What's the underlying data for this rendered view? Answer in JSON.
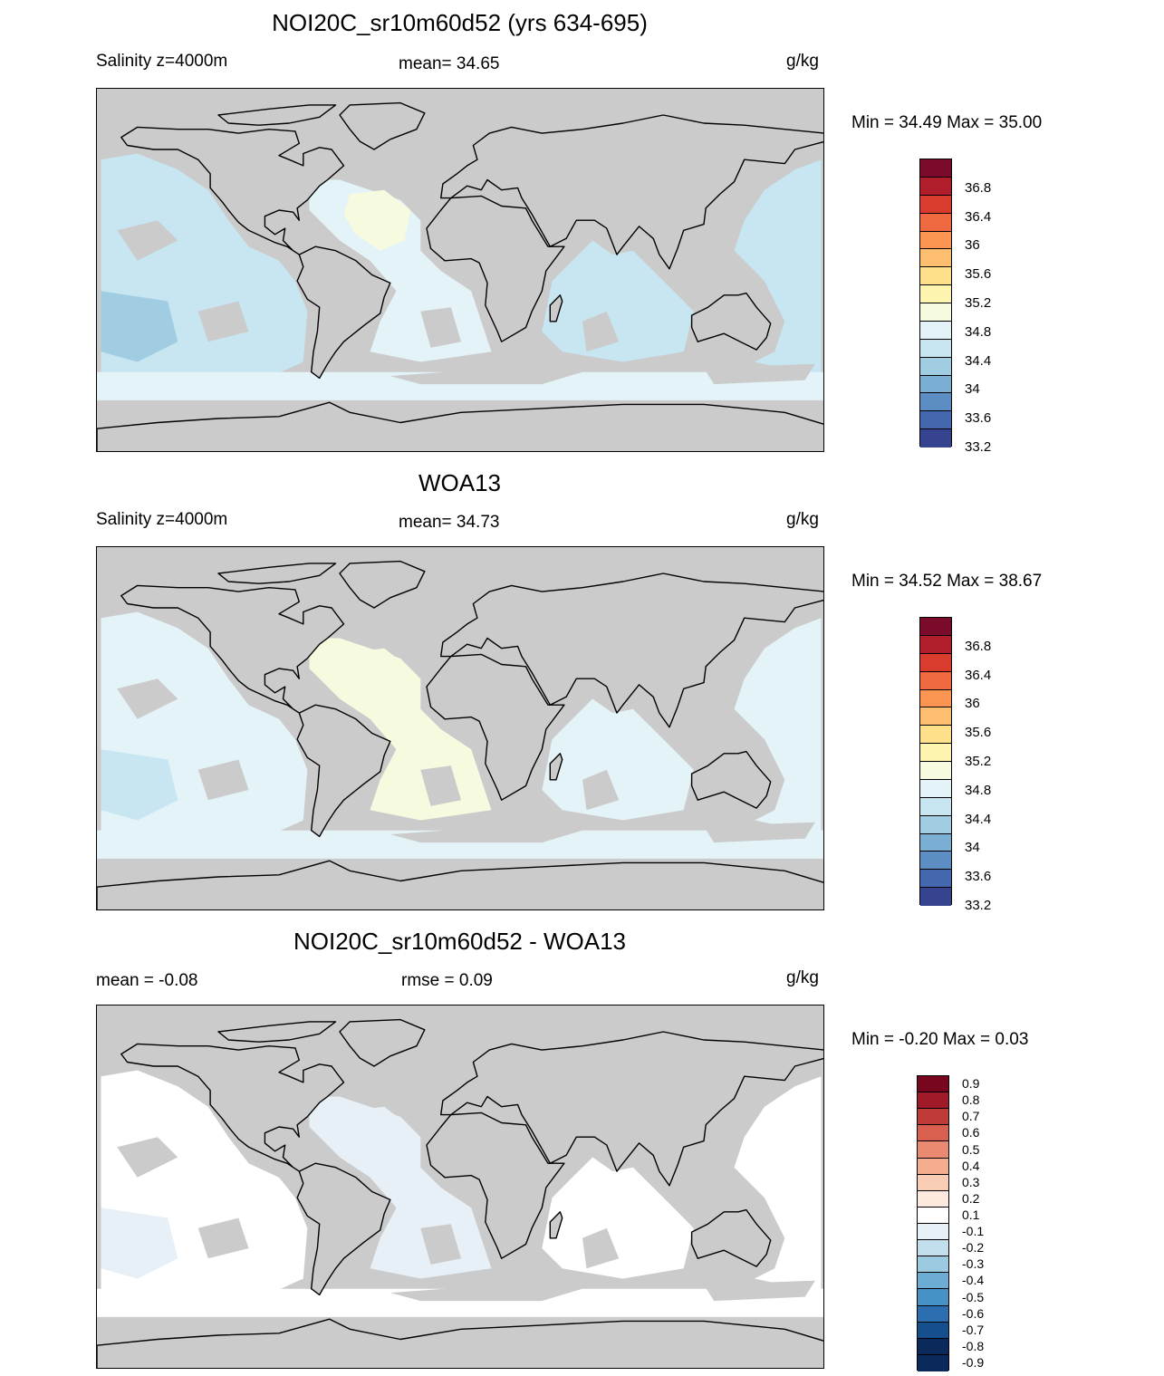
{
  "units_label": "g/kg",
  "colors": {
    "land": "#cbcbcb",
    "salinity_palette": [
      "#2a1e5c",
      "#36438f",
      "#4468ad",
      "#5d8ec3",
      "#7aafd3",
      "#a1cde3",
      "#c7e6f1",
      "#e3f3f8",
      "#f6fbdf",
      "#fdf4b0",
      "#fee08b",
      "#fdbf6f",
      "#fc9552",
      "#f06a41",
      "#d93b2d",
      "#b01d2b",
      "#7a0b2b"
    ],
    "diff_palette": [
      "#0b2a5b",
      "#164f8d",
      "#2b6fb0",
      "#4691c5",
      "#6eadd3",
      "#9ccae1",
      "#c3dfed",
      "#e6f0f6",
      "#ffffff",
      "#fde9dd",
      "#f9cdb5",
      "#f4ad8e",
      "#ea8a70",
      "#d9604f",
      "#c03b37",
      "#a01a2a",
      "#78061f"
    ]
  },
  "panels": [
    {
      "id": "model",
      "title": "NOI20C_sr10m60d52 (yrs 634-695)",
      "left_label": "Salinity z=4000m",
      "center_label": "mean=  34.65",
      "right_label": "g/kg",
      "minmax": "Min =  34.49 Max =  35.00",
      "colorbar_labels": [
        "36.8",
        "36.4",
        "36",
        "35.6",
        "35.2",
        "34.8",
        "34.4",
        "34",
        "33.6",
        "33.2"
      ],
      "map_fill": {
        "pacific": 6,
        "atlantic": 7,
        "indian": 6,
        "southern": 7,
        "highlight": 8,
        "deep": 5
      }
    },
    {
      "id": "obs",
      "title": "WOA13",
      "left_label": "Salinity z=4000m",
      "center_label": "mean=  34.73",
      "right_label": "g/kg",
      "minmax": "Min =  34.52 Max =  38.67",
      "colorbar_labels": [
        "36.8",
        "36.4",
        "36",
        "35.6",
        "35.2",
        "34.8",
        "34.4",
        "34",
        "33.6",
        "33.2"
      ],
      "map_fill": {
        "pacific": 7,
        "atlantic": 8,
        "indian": 7,
        "southern": 7,
        "highlight": 8,
        "deep": 6
      }
    },
    {
      "id": "diff",
      "title": "NOI20C_sr10m60d52 - WOA13",
      "left_label": "mean =  -0.08",
      "center_label": "rmse =   0.09",
      "right_label": "g/kg",
      "minmax": "Min =  -0.20 Max =    0.03",
      "colorbar_labels": [
        "0.9",
        "0.8",
        "0.7",
        "0.6",
        "0.5",
        "0.4",
        "0.3",
        "0.2",
        "0.1",
        "-0.1",
        "-0.2",
        "-0.3",
        "-0.4",
        "-0.5",
        "-0.6",
        "-0.7",
        "-0.8",
        "-0.9"
      ],
      "map_fill": {
        "pacific": 8,
        "atlantic": 7,
        "indian": 8,
        "southern": 8,
        "highlight": 7,
        "deep": 7
      }
    }
  ]
}
